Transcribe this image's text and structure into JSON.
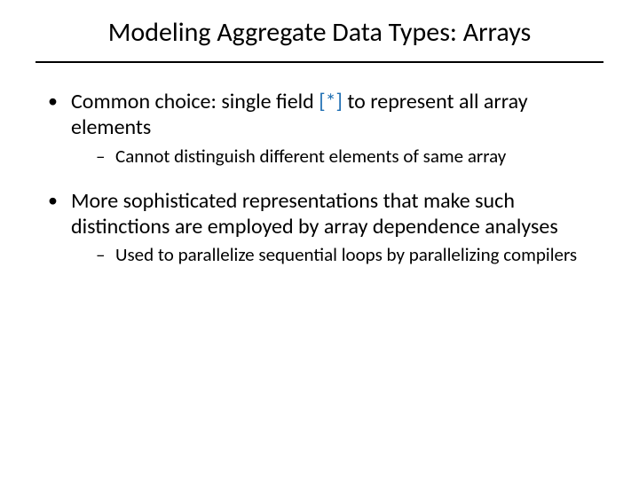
{
  "slide": {
    "title": "Modeling Aggregate Data Types: Arrays",
    "title_fontsize": 30,
    "rule_color": "#000000",
    "background_color": "#ffffff",
    "text_color": "#000000",
    "accent_color": "#1f6fb3",
    "bullets": [
      {
        "text_before": "Common choice: single field ",
        "accent": "[*]",
        "text_after": " to represent all array elements",
        "sub": [
          "Cannot distinguish different elements of same array"
        ]
      },
      {
        "text_before": "More sophisticated representations that make such distinctions are employed by array dependence analyses",
        "accent": "",
        "text_after": "",
        "sub": [
          "Used to parallelize sequential loops by parallelizing compilers"
        ]
      }
    ],
    "body_fontsize": 24,
    "sub_fontsize": 21
  }
}
